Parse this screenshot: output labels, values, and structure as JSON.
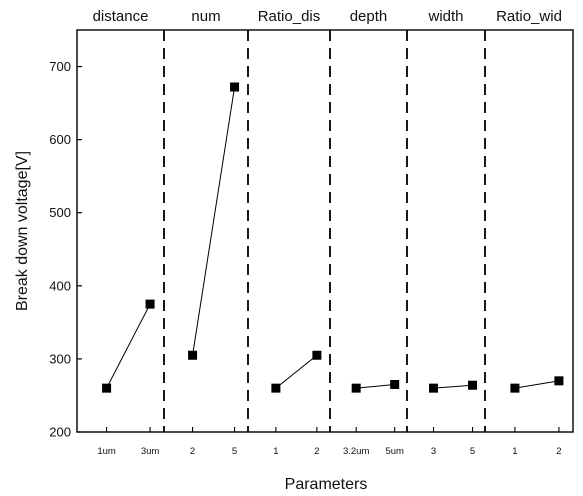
{
  "chart_data": {
    "type": "line",
    "panels": [
      {
        "name": "distance",
        "x": [
          "1um",
          "3um"
        ],
        "y": [
          260,
          375
        ]
      },
      {
        "name": "num",
        "x": [
          "2",
          "5"
        ],
        "y": [
          305,
          672
        ]
      },
      {
        "name": "Ratio_dis",
        "x": [
          "1",
          "2"
        ],
        "y": [
          260,
          305
        ]
      },
      {
        "name": "depth",
        "x": [
          "3.2um",
          "5um"
        ],
        "y": [
          260,
          265
        ]
      },
      {
        "name": "width",
        "x": [
          "3",
          "5"
        ],
        "y": [
          260,
          264
        ]
      },
      {
        "name": "Ratio_wid",
        "x": [
          "1",
          "2"
        ],
        "y": [
          260,
          270
        ]
      }
    ],
    "xlabel": "Parameters",
    "ylabel": "Break down voltage[V]",
    "ylim": [
      200,
      750
    ],
    "yticks": [
      200,
      300,
      400,
      500,
      600,
      700
    ],
    "grid": false,
    "marker": "square",
    "line_color": "#000000",
    "separator_style": "dashed"
  }
}
